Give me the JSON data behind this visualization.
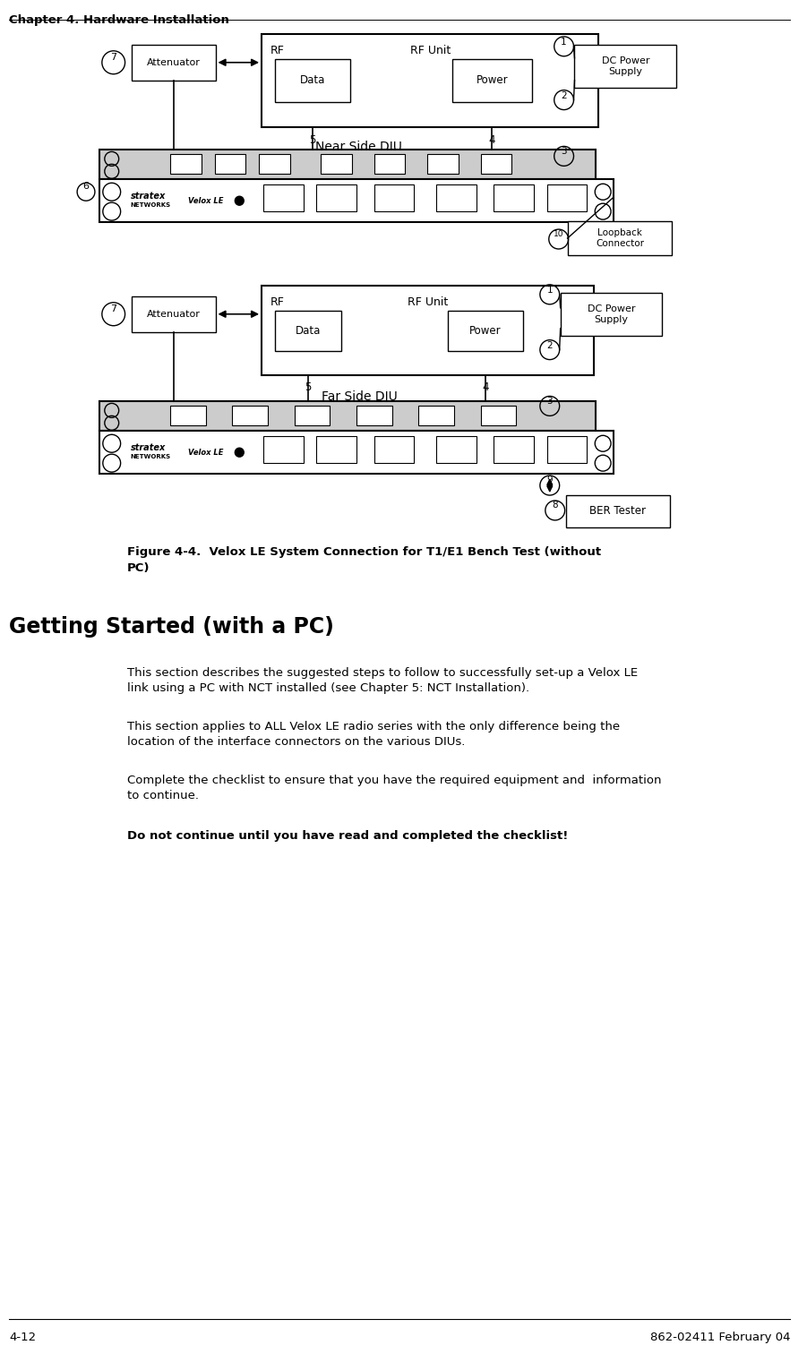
{
  "page_header": "Chapter 4. Hardware Installation",
  "footer_left": "4-12",
  "footer_right": "862-02411 February 04",
  "figure_caption_line1": "Figure 4-4.  Velox LE System Connection for T1/E1 Bench Test (without",
  "figure_caption_line2": "PC)",
  "section_title": "Getting Started (with a PC)",
  "para1_line1": "This section describes the suggested steps to follow to successfully set‑up a Velox LE",
  "para1_line2": "link using a PC with NCT installed (see Chapter 5: NCT Installation).",
  "para2_line1": "This section applies to ALL Velox LE radio series with the only difference being the",
  "para2_line2": "location of the interface connectors on the various DIUs.",
  "para3_line1": "Complete the checklist to ensure that you have the required equipment and  information",
  "para3_line2": "to continue.",
  "para4": "Do not continue until you have read and completed the checklist!",
  "bg_color": "#ffffff",
  "text_color": "#000000"
}
